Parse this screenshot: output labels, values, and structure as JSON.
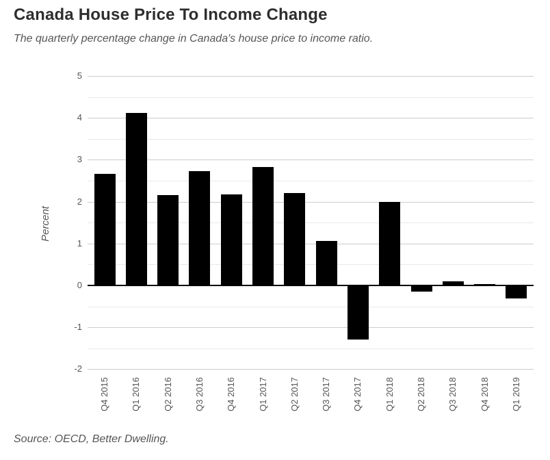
{
  "header": {
    "title": "Canada House Price To Income Change",
    "subtitle": "The quarterly percentage change in Canada's house price to income ratio."
  },
  "footer": {
    "source": "Source: OECD, Better Dwelling."
  },
  "chart_data": {
    "type": "bar",
    "title": "Canada House Price To Income Change",
    "subtitle": "The quarterly percentage change in Canada's house price to income ratio.",
    "categories": [
      "Q4 2015",
      "Q1 2016",
      "Q2 2016",
      "Q3 2016",
      "Q4 2016",
      "Q1 2017",
      "Q2 2017",
      "Q3 2017",
      "Q4 2017",
      "Q1 2018",
      "Q2 2018",
      "Q3 2018",
      "Q4 2018",
      "Q1 2019"
    ],
    "values": [
      2.67,
      4.11,
      2.15,
      2.73,
      2.17,
      2.83,
      2.2,
      1.06,
      -1.28,
      2.0,
      -0.13,
      0.1,
      0.03,
      -0.3
    ],
    "xlabel": "",
    "ylabel": "Percent",
    "ylim": [
      -2,
      5
    ],
    "y_major_ticks": [
      5,
      4,
      3,
      2,
      1,
      0,
      -1,
      -2
    ],
    "gridline_step": 0.5,
    "grid": "on",
    "legend_position": "none",
    "bar_color": "#000000",
    "grid_major_color": "#cccccc",
    "grid_minor_color": "#e9e9e9",
    "zero_line_color": "#000000",
    "text_color": "#555555",
    "title_color": "#2e2e2e",
    "source": "Source: OECD, Better Dwelling."
  }
}
